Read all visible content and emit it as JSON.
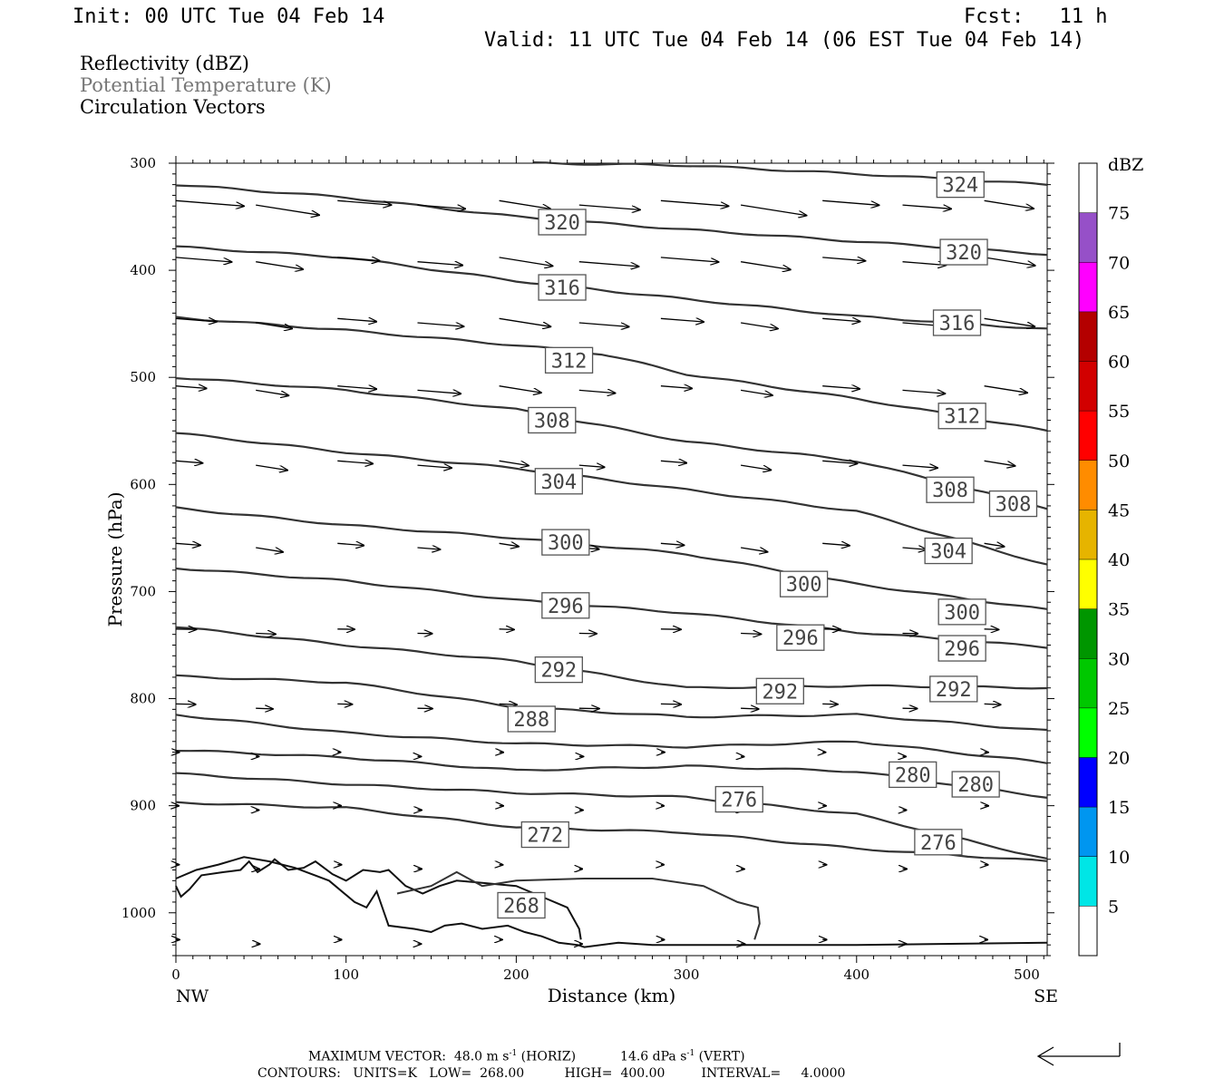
{
  "header": {
    "init": "Init: 00 UTC Tue 04 Feb 14",
    "fcst_label": "Fcst:",
    "fcst_value": "11 h",
    "valid": "Valid: 11 UTC Tue 04 Feb 14 (06 EST Tue 04 Feb 14)"
  },
  "fields": [
    {
      "label": "Reflectivity (dBZ)",
      "color": "#000000"
    },
    {
      "label": "Potential Temperature (K)",
      "color": "#777777"
    },
    {
      "label": "Circulation Vectors",
      "color": "#000000"
    }
  ],
  "footer": {
    "max_vector_label": "MAXIMUM VECTOR:",
    "max_horiz_value": "48.0",
    "horiz_unit_base": "m s",
    "horiz_unit_exp": "-1",
    "horiz_tag": "(HORIZ)",
    "max_vert_value": "14.6",
    "vert_unit_base": "dPa s",
    "vert_unit_exp": "-1",
    "vert_tag": "(VERT)",
    "contours_label": "CONTOURS:",
    "units": "UNITS=K",
    "low": "LOW=",
    "low_value": "268.00",
    "high": "HIGH=",
    "high_value": "400.00",
    "interval": "INTERVAL=",
    "interval_value": "4.0000"
  },
  "chart_data": {
    "type": "line",
    "xlabel": "Distance (km)",
    "ylabel": "Pressure (hPa)",
    "xlim": [
      0,
      512
    ],
    "ylim": [
      1040,
      300
    ],
    "x_ticks": [
      0,
      100,
      200,
      300,
      400,
      500
    ],
    "y_ticks": [
      300,
      400,
      500,
      600,
      700,
      800,
      900,
      1000
    ],
    "x_end_labels": {
      "left": "NW",
      "right": "SE"
    },
    "colorbar": {
      "title": "dBZ",
      "labels": [
        "5",
        "10",
        "15",
        "20",
        "25",
        "30",
        "35",
        "40",
        "45",
        "50",
        "55",
        "60",
        "65",
        "70",
        "75"
      ],
      "colors": [
        "#ffffff",
        "#00e6e6",
        "#0096f0",
        "#0000ff",
        "#00ff00",
        "#00c800",
        "#009600",
        "#ffff00",
        "#e6b400",
        "#ff8c00",
        "#ff0000",
        "#d20000",
        "#b40000",
        "#ff00ff",
        "#9650c8",
        "#ffffff"
      ]
    },
    "isentropes": [
      {
        "theta": 324,
        "points": [
          [
            210,
            300
          ],
          [
            300,
            302
          ],
          [
            400,
            310
          ],
          [
            512,
            320
          ]
        ]
      },
      {
        "theta": 320,
        "points": [
          [
            0,
            320
          ],
          [
            100,
            332
          ],
          [
            200,
            350
          ],
          [
            300,
            362
          ],
          [
            400,
            373
          ],
          [
            512,
            385
          ]
        ]
      },
      {
        "theta": 316,
        "points": [
          [
            0,
            378
          ],
          [
            100,
            388
          ],
          [
            200,
            410
          ],
          [
            300,
            427
          ],
          [
            400,
            443
          ],
          [
            512,
            455
          ]
        ]
      },
      {
        "theta": 312,
        "points": [
          [
            0,
            444
          ],
          [
            100,
            456
          ],
          [
            200,
            470
          ],
          [
            250,
            478
          ],
          [
            300,
            497
          ],
          [
            400,
            520
          ],
          [
            512,
            550
          ]
        ]
      },
      {
        "theta": 308,
        "points": [
          [
            0,
            500
          ],
          [
            100,
            512
          ],
          [
            200,
            530
          ],
          [
            300,
            560
          ],
          [
            400,
            578
          ],
          [
            512,
            622
          ]
        ]
      },
      {
        "theta": 304,
        "points": [
          [
            0,
            552
          ],
          [
            100,
            570
          ],
          [
            200,
            585
          ],
          [
            300,
            605
          ],
          [
            400,
            625
          ],
          [
            512,
            675
          ]
        ]
      },
      {
        "theta": 300,
        "points": [
          [
            0,
            622
          ],
          [
            100,
            638
          ],
          [
            200,
            650
          ],
          [
            300,
            665
          ],
          [
            400,
            693
          ],
          [
            512,
            717
          ]
        ]
      },
      {
        "theta": 296,
        "points": [
          [
            0,
            678
          ],
          [
            100,
            690
          ],
          [
            200,
            708
          ],
          [
            300,
            720
          ],
          [
            400,
            738
          ],
          [
            512,
            752
          ]
        ]
      },
      {
        "theta": 292,
        "points": [
          [
            0,
            733
          ],
          [
            100,
            750
          ],
          [
            200,
            765
          ],
          [
            300,
            790
          ],
          [
            400,
            788
          ],
          [
            512,
            790
          ]
        ]
      },
      {
        "theta": 288,
        "points": [
          [
            0,
            779
          ],
          [
            100,
            785
          ],
          [
            200,
            808
          ],
          [
            300,
            817
          ],
          [
            400,
            815
          ],
          [
            512,
            830
          ]
        ]
      },
      {
        "theta": 284,
        "points": [
          [
            0,
            815
          ],
          [
            100,
            832
          ],
          [
            200,
            842
          ],
          [
            300,
            845
          ],
          [
            400,
            840
          ],
          [
            512,
            860
          ]
        ]
      },
      {
        "theta": 280,
        "points": [
          [
            0,
            848
          ],
          [
            100,
            855
          ],
          [
            200,
            867
          ],
          [
            300,
            863
          ],
          [
            400,
            868
          ],
          [
            512,
            892
          ]
        ]
      },
      {
        "theta": 276,
        "points": [
          [
            0,
            870
          ],
          [
            100,
            880
          ],
          [
            200,
            888
          ],
          [
            300,
            892
          ],
          [
            400,
            908
          ],
          [
            512,
            950
          ]
        ]
      },
      {
        "theta": 272,
        "points": [
          [
            0,
            897
          ],
          [
            100,
            902
          ],
          [
            200,
            920
          ],
          [
            300,
            925
          ],
          [
            400,
            940
          ],
          [
            512,
            952
          ]
        ]
      }
    ],
    "contour_labels": [
      {
        "text": "324",
        "x": 461,
        "p": 320
      },
      {
        "text": "320",
        "x": 227,
        "p": 355
      },
      {
        "text": "320",
        "x": 463,
        "p": 383
      },
      {
        "text": "316",
        "x": 227,
        "p": 416
      },
      {
        "text": "316",
        "x": 459,
        "p": 449
      },
      {
        "text": "312",
        "x": 231,
        "p": 484
      },
      {
        "text": "312",
        "x": 462,
        "p": 536
      },
      {
        "text": "308",
        "x": 221,
        "p": 540
      },
      {
        "text": "308",
        "x": 455,
        "p": 605
      },
      {
        "text": "308",
        "x": 492,
        "p": 618
      },
      {
        "text": "304",
        "x": 225,
        "p": 597
      },
      {
        "text": "304",
        "x": 454,
        "p": 662
      },
      {
        "text": "300",
        "x": 229,
        "p": 654
      },
      {
        "text": "300",
        "x": 369,
        "p": 693
      },
      {
        "text": "300",
        "x": 462,
        "p": 719
      },
      {
        "text": "296",
        "x": 229,
        "p": 713
      },
      {
        "text": "296",
        "x": 367,
        "p": 743
      },
      {
        "text": "296",
        "x": 462,
        "p": 753
      },
      {
        "text": "292",
        "x": 225,
        "p": 773
      },
      {
        "text": "292",
        "x": 355,
        "p": 793
      },
      {
        "text": "292",
        "x": 457,
        "p": 791
      },
      {
        "text": "288",
        "x": 209,
        "p": 819
      },
      {
        "text": "280",
        "x": 433,
        "p": 871
      },
      {
        "text": "280",
        "x": 470,
        "p": 880
      },
      {
        "text": "276",
        "x": 331,
        "p": 894
      },
      {
        "text": "276",
        "x": 448,
        "p": 934
      },
      {
        "text": "272",
        "x": 217,
        "p": 927
      },
      {
        "text": "268",
        "x": 203,
        "p": 993
      }
    ]
  }
}
